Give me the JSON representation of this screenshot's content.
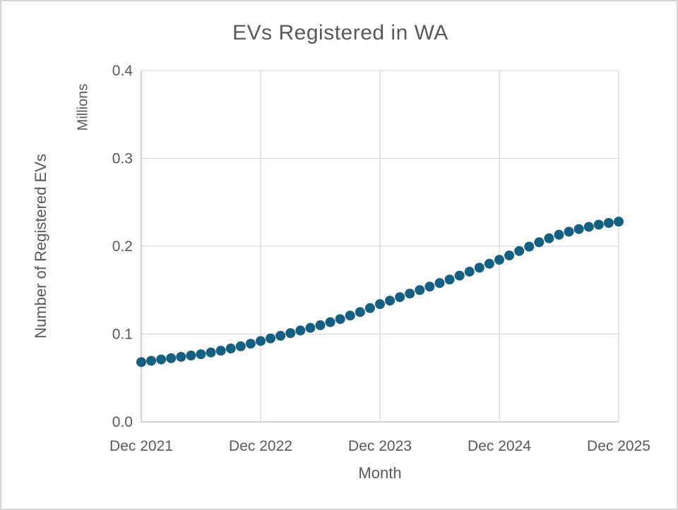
{
  "window": {
    "background_color": "#ffffff",
    "frame_border_color": "#d6d6d6"
  },
  "chart_data": {
    "type": "scatter",
    "title": "EVs Registered in WA",
    "xlabel": "Month",
    "ylabel": "Number of Registered EVs",
    "y_units_label": "Millions",
    "ylim": [
      0,
      0.4
    ],
    "y_ticks": [
      0,
      0.1,
      0.2,
      0.3,
      0.4
    ],
    "y_tick_labels": [
      "0.0",
      "0.1",
      "0.2",
      "0.3",
      "0.4"
    ],
    "x_tick_indices": [
      0,
      12,
      24,
      36,
      48
    ],
    "x_tick_labels": [
      "Dec 2021",
      "Dec 2022",
      "Dec 2023",
      "Dec 2024",
      "Dec 2025"
    ],
    "grid_on": true,
    "legend": "none",
    "marker_color": "#156082",
    "gridline_color": "#d9d9d9",
    "axis_line_color": "#c6c6c6",
    "text_color": "#595959",
    "series": [
      {
        "name": "Number of Registered EVs",
        "x": [
          "Dec 2021",
          "Jan 2022",
          "Feb 2022",
          "Mar 2022",
          "Apr 2022",
          "May 2022",
          "Jun 2022",
          "Jul 2022",
          "Aug 2022",
          "Sep 2022",
          "Oct 2022",
          "Nov 2022",
          "Dec 2022",
          "Jan 2023",
          "Feb 2023",
          "Mar 2023",
          "Apr 2023",
          "May 2023",
          "Jun 2023",
          "Jul 2023",
          "Aug 2023",
          "Sep 2023",
          "Oct 2023",
          "Nov 2023",
          "Dec 2023",
          "Jan 2024",
          "Feb 2024",
          "Mar 2024",
          "Apr 2024",
          "May 2024",
          "Jun 2024",
          "Jul 2024",
          "Aug 2024",
          "Sep 2024",
          "Oct 2024",
          "Nov 2024",
          "Dec 2024",
          "Jan 2025",
          "Feb 2025",
          "Mar 2025",
          "Apr 2025",
          "May 2025",
          "Jun 2025",
          "Jul 2025",
          "Aug 2025",
          "Sep 2025",
          "Oct 2025",
          "Nov 2025",
          "Dec 2025"
        ],
        "values": [
          0.068,
          0.0695,
          0.071,
          0.0725,
          0.074,
          0.0755,
          0.077,
          0.079,
          0.081,
          0.0835,
          0.086,
          0.089,
          0.092,
          0.095,
          0.098,
          0.101,
          0.104,
          0.107,
          0.11,
          0.1135,
          0.117,
          0.121,
          0.125,
          0.1295,
          0.134,
          0.138,
          0.142,
          0.146,
          0.15,
          0.154,
          0.158,
          0.162,
          0.1665,
          0.171,
          0.1755,
          0.18,
          0.1845,
          0.1895,
          0.1945,
          0.1995,
          0.2045,
          0.209,
          0.213,
          0.2165,
          0.2195,
          0.222,
          0.2245,
          0.2265,
          0.228
        ]
      }
    ]
  }
}
